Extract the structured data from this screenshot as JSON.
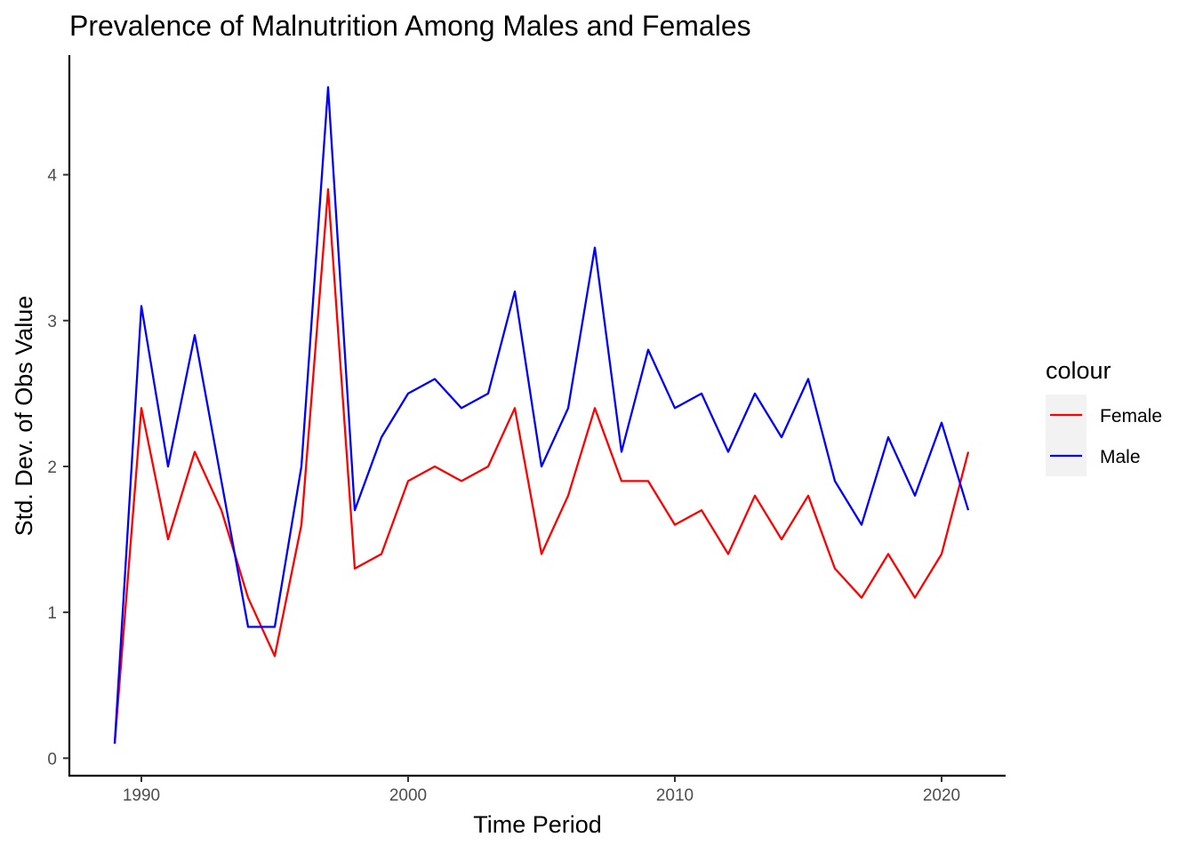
{
  "chart_data": {
    "type": "line",
    "title": "Prevalence of Malnutrition Among Males and Females",
    "xlabel": "Time Period",
    "ylabel": "Std. Dev. of Obs Value",
    "x": [
      1989,
      1990,
      1991,
      1992,
      1993,
      1994,
      1995,
      1996,
      1997,
      1998,
      1999,
      2000,
      2001,
      2002,
      2003,
      2004,
      2005,
      2006,
      2007,
      2008,
      2009,
      2010,
      2011,
      2012,
      2013,
      2014,
      2015,
      2016,
      2017,
      2018,
      2019,
      2020,
      2021
    ],
    "series": [
      {
        "name": "Female",
        "color": "#ff0000",
        "values": [
          0.1,
          2.4,
          1.5,
          2.1,
          1.7,
          1.1,
          0.7,
          1.6,
          3.9,
          1.3,
          1.4,
          1.9,
          2.0,
          1.9,
          2.0,
          2.4,
          1.4,
          1.8,
          2.4,
          1.9,
          1.9,
          1.6,
          1.7,
          1.4,
          1.8,
          1.5,
          1.8,
          1.3,
          1.1,
          1.4,
          1.1,
          1.4,
          2.1
        ]
      },
      {
        "name": "Male",
        "color": "#0000ff",
        "values": [
          0.1,
          3.1,
          2.0,
          2.9,
          1.9,
          0.9,
          0.9,
          2.0,
          4.6,
          1.7,
          2.2,
          2.5,
          2.6,
          2.4,
          2.5,
          3.2,
          2.0,
          2.4,
          3.5,
          2.1,
          2.8,
          2.4,
          2.5,
          2.1,
          2.5,
          2.2,
          2.6,
          1.9,
          1.6,
          2.2,
          1.8,
          2.3,
          1.7
        ]
      }
    ],
    "xlim": [
      1987.3,
      2022.4
    ],
    "ylim": [
      -0.12,
      4.82
    ],
    "x_ticks": [
      1990,
      2000,
      2010,
      2020
    ],
    "y_ticks": [
      0,
      1,
      2,
      3,
      4
    ],
    "x_tick_labels": [
      "1990",
      "2000",
      "2010",
      "2020"
    ],
    "y_tick_labels": [
      "0",
      "1",
      "2",
      "3",
      "4"
    ],
    "legend": {
      "title": "colour",
      "position": "right",
      "entries": [
        "Female",
        "Male"
      ]
    },
    "grid": false
  }
}
